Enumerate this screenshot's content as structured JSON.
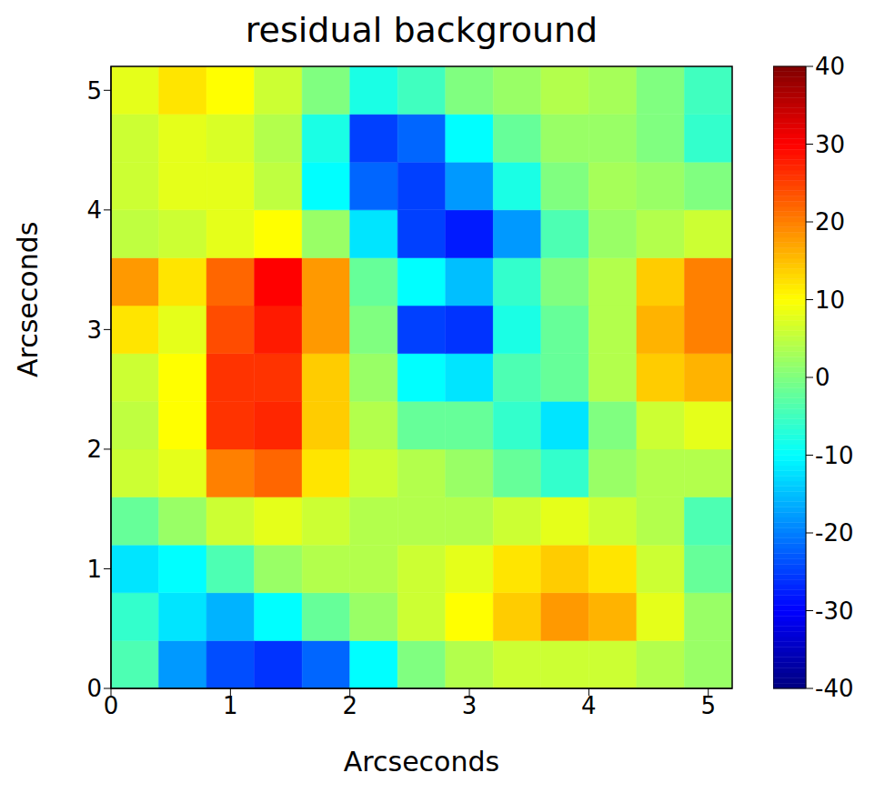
{
  "chart_data": {
    "type": "heatmap",
    "title": "residual background",
    "x_label": "Arcseconds",
    "y_label": "Arcseconds",
    "xlim": [
      0,
      5.2
    ],
    "ylim": [
      0,
      5.2
    ],
    "xticks": [
      0,
      1,
      2,
      3,
      4,
      5
    ],
    "yticks": [
      0,
      1,
      2,
      3,
      4,
      5
    ],
    "color": "jet",
    "x_edges": [
      0,
      0.4,
      0.8,
      1.2,
      1.6,
      2.0,
      2.4,
      2.8,
      3.2,
      3.6,
      4.0,
      4.4,
      4.8,
      5.2
    ],
    "y_edges": [
      0,
      0.4,
      0.8,
      1.2,
      1.6,
      2.0,
      2.4,
      2.8,
      3.2,
      3.6,
      4.0,
      4.4,
      4.8,
      5.2
    ],
    "cells": [
      [
        -4,
        -18,
        -24,
        -26,
        -22,
        -10,
        0,
        4,
        6,
        6,
        6,
        4,
        2
      ],
      [
        -6,
        -12,
        -16,
        -10,
        -2,
        2,
        6,
        10,
        14,
        18,
        16,
        8,
        2
      ],
      [
        -12,
        -10,
        -4,
        2,
        4,
        4,
        6,
        8,
        12,
        14,
        12,
        6,
        -2
      ],
      [
        -2,
        2,
        6,
        8,
        6,
        4,
        4,
        4,
        6,
        8,
        6,
        4,
        -4
      ],
      [
        6,
        8,
        20,
        22,
        12,
        6,
        4,
        2,
        -2,
        -6,
        2,
        4,
        4
      ],
      [
        5,
        10,
        26,
        27,
        14,
        4,
        -2,
        -2,
        -6,
        -12,
        0,
        6,
        8
      ],
      [
        6,
        10,
        26,
        26,
        14,
        2,
        -10,
        -12,
        -4,
        -2,
        4,
        14,
        16
      ],
      [
        12,
        8,
        24,
        28,
        18,
        0,
        -25,
        -26,
        -8,
        -2,
        4,
        16,
        20
      ],
      [
        18,
        12,
        22,
        30,
        18,
        -2,
        -10,
        -15,
        -6,
        0,
        4,
        14,
        20
      ],
      [
        5,
        6,
        8,
        10,
        2,
        -12,
        -25,
        -28,
        -18,
        -4,
        2,
        4,
        6
      ],
      [
        6,
        8,
        8,
        5,
        -10,
        -22,
        -25,
        -18,
        -8,
        0,
        3,
        2,
        0
      ],
      [
        6,
        8,
        7,
        4,
        -8,
        -25,
        -22,
        -10,
        -2,
        2,
        2,
        0,
        -6
      ],
      [
        8,
        12,
        10,
        6,
        0,
        -8,
        -5,
        0,
        2,
        4,
        3,
        0,
        -5
      ]
    ],
    "colorbar_range": [
      -40,
      40
    ],
    "colorbar_ticks": [
      -40,
      -30,
      -20,
      -10,
      0,
      10,
      20,
      30,
      40
    ]
  }
}
